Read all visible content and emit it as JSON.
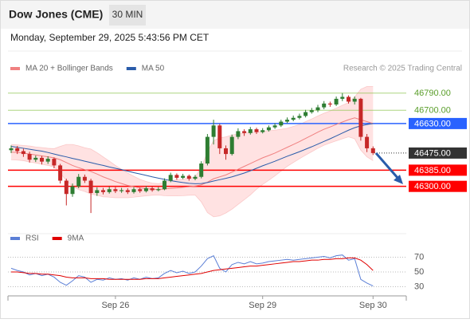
{
  "header": {
    "title": "Dow Jones (CME)",
    "timeframe": "30 MIN",
    "datetime": "Monday, September 29, 2025 5:43:56 PM CET"
  },
  "chart_data": [
    {
      "type": "candlestick",
      "source": "Research © 2025 Trading Central",
      "categories": [
        null,
        null,
        null,
        null,
        null,
        null,
        null,
        null,
        null,
        null,
        null,
        null,
        null,
        null,
        null,
        null,
        null,
        "Sep 26",
        null,
        null,
        null,
        null,
        null,
        null,
        null,
        null,
        null,
        null,
        null,
        null,
        null,
        null,
        null,
        null,
        null,
        null,
        null,
        null,
        null,
        null,
        null,
        "Sep 29",
        null,
        null,
        null,
        null,
        null,
        null,
        null,
        null,
        null,
        null,
        null,
        null,
        null,
        null,
        null,
        null,
        null,
        "Sep 30"
      ],
      "candles": {
        "up_color": "#2e7d32",
        "down_color": "#c62828",
        "open": [
          46490,
          46500,
          46485,
          46470,
          46440,
          46450,
          46430,
          46445,
          46410,
          46330,
          46260,
          46300,
          46350,
          46330,
          46265,
          46280,
          46270,
          46285,
          46275,
          46280,
          46270,
          46285,
          46275,
          46290,
          46280,
          46285,
          46330,
          46360,
          46345,
          46355,
          46340,
          46350,
          46420,
          46560,
          46620,
          46500,
          46470,
          46560,
          46590,
          46580,
          46600,
          46585,
          46595,
          46610,
          46620,
          46640,
          46650,
          46660,
          46670,
          46690,
          46700,
          46715,
          46735,
          46730,
          46760,
          46770,
          46745,
          46760,
          46560,
          46500
        ],
        "high": [
          46515,
          46512,
          46498,
          46482,
          46462,
          46460,
          46458,
          46452,
          46418,
          46340,
          46315,
          46365,
          46362,
          46340,
          46295,
          46292,
          46298,
          46296,
          46292,
          46290,
          46296,
          46294,
          46302,
          46300,
          46296,
          46342,
          46372,
          46368,
          46366,
          46362,
          46360,
          46432,
          46575,
          46650,
          46628,
          46515,
          46572,
          46605,
          46600,
          46612,
          46608,
          46606,
          46620,
          46632,
          46650,
          46662,
          46672,
          46682,
          46702,
          46712,
          46728,
          46748,
          46745,
          46772,
          46790,
          46778,
          46772,
          46765,
          46575,
          46510
        ],
        "low": [
          46475,
          46470,
          46455,
          46425,
          46428,
          46415,
          46418,
          46395,
          46315,
          46200,
          46245,
          46290,
          46318,
          46160,
          46250,
          46258,
          46262,
          46265,
          46266,
          46260,
          46262,
          46266,
          46268,
          46272,
          46274,
          46280,
          46322,
          46335,
          46338,
          46330,
          46332,
          46342,
          46410,
          46520,
          46470,
          46440,
          46462,
          46548,
          46565,
          46572,
          46575,
          46578,
          46588,
          46602,
          46612,
          46632,
          46642,
          46652,
          46662,
          46682,
          46690,
          46705,
          46718,
          46722,
          46748,
          46735,
          46730,
          46540,
          46480,
          46465
        ],
        "close": [
          46500,
          46485,
          46470,
          46440,
          46450,
          46430,
          46445,
          46410,
          46330,
          46260,
          46300,
          46350,
          46330,
          46265,
          46280,
          46270,
          46285,
          46275,
          46280,
          46270,
          46285,
          46275,
          46290,
          46280,
          46285,
          46330,
          46360,
          46345,
          46355,
          46340,
          46350,
          46420,
          46560,
          46620,
          46500,
          46470,
          46560,
          46590,
          46580,
          46600,
          46585,
          46595,
          46610,
          46620,
          46640,
          46650,
          46660,
          46670,
          46690,
          46700,
          46715,
          46735,
          46730,
          46760,
          46770,
          46745,
          46760,
          46560,
          46500,
          46475
        ]
      },
      "series": [
        {
          "name": "MA 20 + Bollinger Bands",
          "color": "#f08080",
          "band_color": "#ffd6d6",
          "values": [
            46480,
            46478,
            46475,
            46470,
            46465,
            46460,
            46455,
            46450,
            46440,
            46425,
            46410,
            46398,
            46388,
            46378,
            46365,
            46350,
            46338,
            46325,
            46315,
            46305,
            46298,
            46292,
            46288,
            46285,
            46284,
            46286,
            46290,
            46292,
            46295,
            46298,
            46302,
            46308,
            46322,
            46340,
            46350,
            46360,
            46375,
            46390,
            46405,
            46420,
            46435,
            46450,
            46462,
            46475,
            46490,
            46505,
            46520,
            46535,
            46552,
            46568,
            46585,
            46600,
            46612,
            46625,
            46638,
            46650,
            46660,
            46650,
            46640,
            46630
          ],
          "band_upper": [
            46520,
            46518,
            46515,
            46512,
            46507,
            46504,
            46500,
            46498,
            46510,
            46520,
            46520,
            46513,
            46503,
            46496,
            46477,
            46455,
            46433,
            46410,
            46390,
            46370,
            46353,
            46337,
            46326,
            46317,
            46314,
            46321,
            46330,
            46334,
            46339,
            46343,
            46350,
            46398,
            46482,
            46540,
            46555,
            46560,
            46570,
            46575,
            46580,
            46585,
            46585,
            46590,
            46592,
            46595,
            46600,
            46605,
            46615,
            46625,
            46640,
            46654,
            46670,
            46684,
            46696,
            46711,
            46726,
            46740,
            46770,
            46810,
            46825,
            46825
          ],
          "band_lower": [
            46440,
            46438,
            46435,
            46428,
            46423,
            46416,
            46410,
            46402,
            46370,
            46330,
            46300,
            46283,
            46273,
            46260,
            46253,
            46245,
            46243,
            46240,
            46240,
            46240,
            46243,
            46247,
            46250,
            46253,
            46254,
            46251,
            46250,
            46250,
            46251,
            46253,
            46254,
            46218,
            46162,
            46140,
            46145,
            46160,
            46180,
            46205,
            46230,
            46255,
            46285,
            46310,
            46332,
            46355,
            46380,
            46405,
            46425,
            46445,
            46464,
            46482,
            46500,
            46516,
            46528,
            46539,
            46550,
            46560,
            46550,
            46490,
            46455,
            46435
          ]
        },
        {
          "name": "MA 50",
          "color": "#2a5caa",
          "values": [
            46510,
            46505,
            46500,
            46495,
            46490,
            46485,
            46478,
            46470,
            46462,
            46455,
            46447,
            46440,
            46432,
            46425,
            46417,
            46410,
            46402,
            46395,
            46388,
            46380,
            46372,
            46365,
            46358,
            46350,
            46343,
            46337,
            46330,
            46325,
            46320,
            46316,
            46314,
            46315,
            46320,
            46328,
            46335,
            46342,
            46350,
            46360,
            46370,
            46382,
            46395,
            46408,
            46420,
            46432,
            46445,
            46458,
            46470,
            46482,
            46495,
            46508,
            46522,
            46536,
            46550,
            46565,
            46580,
            46595,
            46608,
            46618,
            46625,
            46630
          ]
        }
      ],
      "ylim": [
        46085,
        46860
      ],
      "yticks": [
        {
          "value": 46790,
          "label": "46790.00"
        },
        {
          "value": 46700,
          "label": "46700.00"
        },
        {
          "value": 46630,
          "label": "46630.00"
        },
        {
          "value": 46475,
          "label": "46475.00"
        },
        {
          "value": 46385,
          "label": "46385.00"
        },
        {
          "value": 46300,
          "label": "46300.00"
        }
      ],
      "ytick_colors": [
        "#8bc34a",
        "#8bc34a",
        "#2962ff",
        "#333333",
        "#ff0000",
        "#ff0000"
      ],
      "ytick_boxed": [
        false,
        false,
        true,
        true,
        true,
        true
      ],
      "ytick_dashed": [
        false,
        false,
        false,
        true,
        false,
        false
      ]
    },
    {
      "type": "line",
      "series": [
        {
          "name": "RSI",
          "color": "#5b7fd6",
          "values": [
            55,
            52,
            50,
            46,
            48,
            45,
            47,
            43,
            36,
            32,
            38,
            45,
            43,
            36,
            40,
            39,
            42,
            40,
            41,
            39,
            42,
            40,
            43,
            41,
            42,
            48,
            52,
            49,
            51,
            48,
            50,
            58,
            68,
            72,
            55,
            50,
            60,
            63,
            61,
            64,
            61,
            62,
            64,
            65,
            66,
            67,
            66,
            67,
            68,
            69,
            70,
            71,
            69,
            72,
            73,
            66,
            68,
            40,
            35,
            31
          ]
        },
        {
          "name": "9MA",
          "color": "#e00000",
          "values": [
            50,
            50,
            49,
            48,
            48,
            47,
            47,
            46,
            45,
            43,
            42,
            42,
            42,
            41,
            41,
            41,
            40,
            40,
            40,
            40,
            40,
            40,
            41,
            41,
            41,
            42,
            43,
            44,
            45,
            46,
            47,
            48,
            50,
            52,
            53,
            54,
            55,
            56,
            57,
            58,
            58,
            59,
            60,
            61,
            62,
            63,
            64,
            64,
            65,
            66,
            66,
            67,
            67,
            68,
            68,
            69,
            69,
            66,
            60,
            52
          ]
        }
      ],
      "ylim": [
        23,
        77
      ],
      "yticks": [
        70,
        50,
        30
      ]
    }
  ]
}
